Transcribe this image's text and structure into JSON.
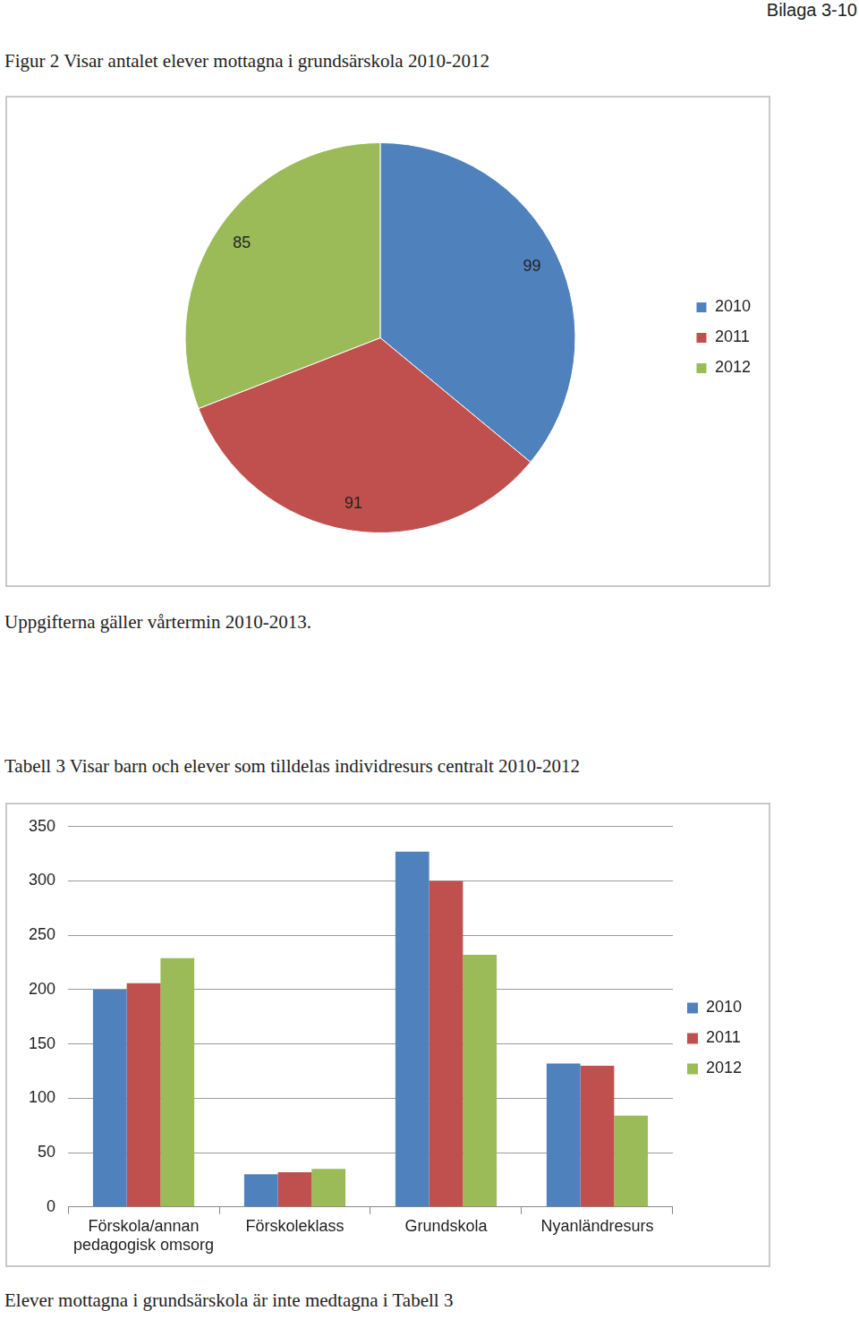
{
  "header": "Bilaga 3-10",
  "chart_data": [
    {
      "type": "pie",
      "title": "Figur 2 Visar antalet elever mottagna i grundsärskola 2010-2012",
      "annotations": [
        "Uppgifterna gäller vårtermin 2010-2013."
      ],
      "categories": [
        "2010",
        "2011",
        "2012"
      ],
      "values": [
        99,
        91,
        85
      ],
      "colors": [
        "#4f81bd",
        "#c0504d",
        "#9bbb59"
      ],
      "data_labels": true,
      "legend": "right"
    },
    {
      "type": "bar",
      "title": "Tabell 3 Visar barn och elever som tilldelas individresurs centralt 2010-2012",
      "annotations": [
        "Elever mottagna i grundsärskola är inte medtagna i Tabell 3"
      ],
      "categories": [
        "Förskola/annan pedagogisk omsorg",
        "Förskoleklass",
        "Grundskola",
        "Nyanländresurs"
      ],
      "series": [
        {
          "name": "2010",
          "color": "#4f81bd",
          "values": [
            200,
            30,
            327,
            132
          ]
        },
        {
          "name": "2011",
          "color": "#c0504d",
          "values": [
            206,
            32,
            300,
            130
          ]
        },
        {
          "name": "2012",
          "color": "#9bbb59",
          "values": [
            229,
            35,
            232,
            84
          ]
        }
      ],
      "ylim": [
        0,
        350
      ],
      "yticks": [
        0,
        50,
        100,
        150,
        200,
        250,
        300,
        350
      ],
      "grid": true,
      "legend": "right"
    }
  ]
}
